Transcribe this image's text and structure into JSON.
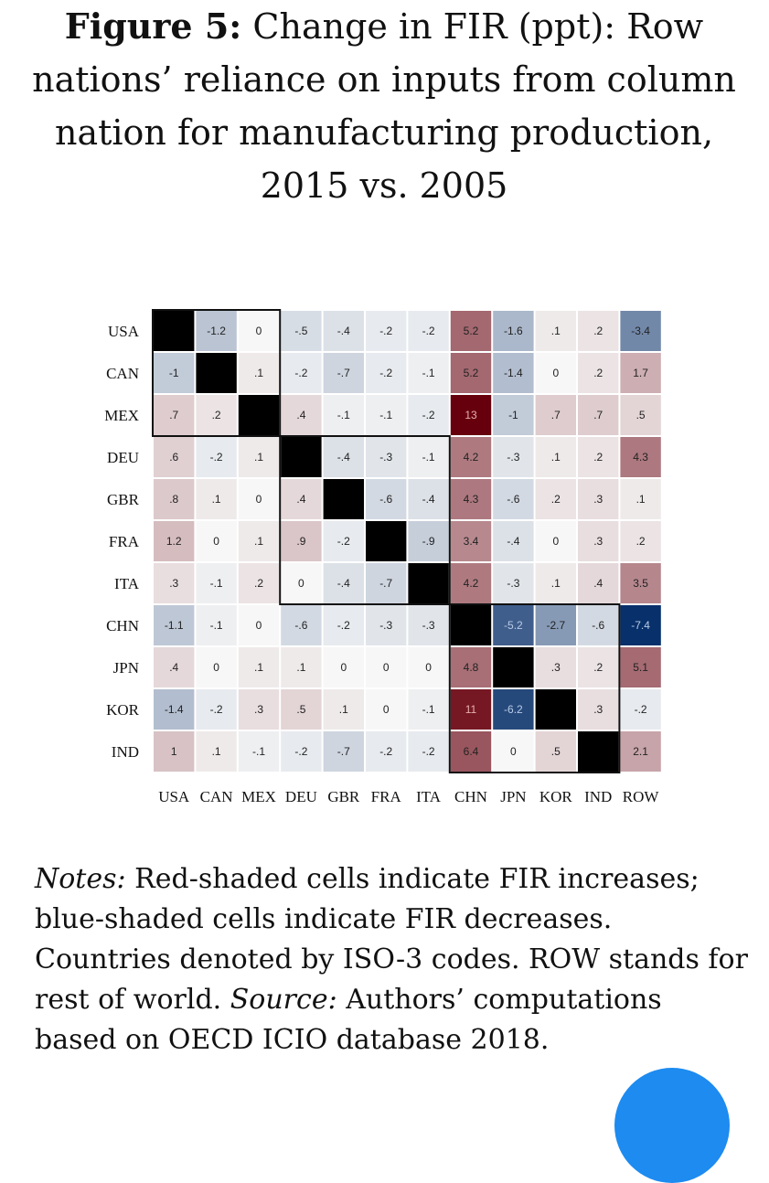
{
  "figure": {
    "label": "Figure 5:",
    "title": "Change in FIR (ppt): Row nations’ reliance on inputs from column nation for manufacturing production, 2015 vs. 2005"
  },
  "notes": {
    "label": "Notes:",
    "text": "Red-shaded cells indicate FIR increases; blue-shaded cells indicate FIR decreases. Countries denoted by ISO-3 codes. ROW stands for rest of world.",
    "source_label": "Source:",
    "source_text": "Authors’ computations based on OECD ICIO database 2018."
  },
  "chart_data": {
    "type": "heatmap",
    "title": "Change in FIR (ppt)",
    "row_labels": [
      "USA",
      "CAN",
      "MEX",
      "DEU",
      "GBR",
      "FRA",
      "ITA",
      "CHN",
      "JPN",
      "KOR",
      "IND"
    ],
    "col_labels": [
      "USA",
      "CAN",
      "MEX",
      "DEU",
      "GBR",
      "FRA",
      "ITA",
      "CHN",
      "JPN",
      "KOR",
      "IND",
      "ROW"
    ],
    "display": [
      [
        null,
        "-1.2",
        "0",
        "-.5",
        "-.4",
        "-.2",
        "-.2",
        "5.2",
        "-1.6",
        ".1",
        ".2",
        "-3.4"
      ],
      [
        "-1",
        null,
        ".1",
        "-.2",
        "-.7",
        "-.2",
        "-.1",
        "5.2",
        "-1.4",
        "0",
        ".2",
        "1.7"
      ],
      [
        ".7",
        ".2",
        null,
        ".4",
        "-.1",
        "-.1",
        "-.2",
        "13",
        "-1",
        ".7",
        ".7",
        ".5"
      ],
      [
        ".6",
        "-.2",
        ".1",
        null,
        "-.4",
        "-.3",
        "-.1",
        "4.2",
        "-.3",
        ".1",
        ".2",
        "4.3"
      ],
      [
        ".8",
        ".1",
        "0",
        ".4",
        null,
        "-.6",
        "-.4",
        "4.3",
        "-.6",
        ".2",
        ".3",
        ".1"
      ],
      [
        "1.2",
        "0",
        ".1",
        ".9",
        "-.2",
        null,
        "-.9",
        "3.4",
        "-.4",
        "0",
        ".3",
        ".2"
      ],
      [
        ".3",
        "-.1",
        ".2",
        "0",
        "-.4",
        "-.7",
        null,
        "4.2",
        "-.3",
        ".1",
        ".4",
        "3.5"
      ],
      [
        "-1.1",
        "-.1",
        "0",
        "-.6",
        "-.2",
        "-.3",
        "-.3",
        null,
        "-5.2",
        "-2.7",
        "-.6",
        "-7.4"
      ],
      [
        ".4",
        "0",
        ".1",
        ".1",
        "0",
        "0",
        "0",
        "4.8",
        null,
        ".3",
        ".2",
        "5.1"
      ],
      [
        "-1.4",
        "-.2",
        ".3",
        ".5",
        ".1",
        "0",
        "-.1",
        "11",
        "-6.2",
        null,
        ".3",
        "-.2"
      ],
      [
        "1",
        ".1",
        "-.1",
        "-.2",
        "-.7",
        "-.2",
        "-.2",
        "6.4",
        "0",
        ".5",
        null,
        "2.1"
      ]
    ],
    "values": [
      [
        null,
        -1.2,
        0,
        -0.5,
        -0.4,
        -0.2,
        -0.2,
        5.2,
        -1.6,
        0.1,
        0.2,
        -3.4
      ],
      [
        -1,
        null,
        0.1,
        -0.2,
        -0.7,
        -0.2,
        -0.1,
        5.2,
        -1.4,
        0,
        0.2,
        1.7
      ],
      [
        0.7,
        0.2,
        null,
        0.4,
        -0.1,
        -0.1,
        -0.2,
        13,
        -1,
        0.7,
        0.7,
        0.5
      ],
      [
        0.6,
        -0.2,
        0.1,
        null,
        -0.4,
        -0.3,
        -0.1,
        4.2,
        -0.3,
        0.1,
        0.2,
        4.3
      ],
      [
        0.8,
        0.1,
        0,
        0.4,
        null,
        -0.6,
        -0.4,
        4.3,
        -0.6,
        0.2,
        0.3,
        0.1
      ],
      [
        1.2,
        0,
        0.1,
        0.9,
        -0.2,
        null,
        -0.9,
        3.4,
        -0.4,
        0,
        0.3,
        0.2
      ],
      [
        0.3,
        -0.1,
        0.2,
        0,
        -0.4,
        -0.7,
        null,
        4.2,
        -0.3,
        0.1,
        0.4,
        3.5
      ],
      [
        -1.1,
        -0.1,
        0,
        -0.6,
        -0.2,
        -0.3,
        -0.3,
        null,
        -5.2,
        -2.7,
        -0.6,
        -7.4
      ],
      [
        0.4,
        0,
        0.1,
        0.1,
        0,
        0,
        0,
        4.8,
        null,
        0.3,
        0.2,
        5.1
      ],
      [
        -1.4,
        -0.2,
        0.3,
        0.5,
        0.1,
        0,
        -0.1,
        11,
        -6.2,
        null,
        0.3,
        -0.2
      ],
      [
        1,
        0.1,
        -0.1,
        -0.2,
        -0.7,
        -0.2,
        -0.2,
        6.4,
        0,
        0.5,
        null,
        2.1
      ]
    ],
    "diagonal_fill": "black",
    "color_scale": {
      "negative": "#08306b",
      "zero": "#f7f7f7",
      "positive": "#67000d"
    },
    "group_boxes": [
      {
        "rows": [
          "USA",
          "MEX"
        ],
        "cols": [
          "USA",
          "MEX"
        ]
      },
      {
        "rows": [
          "DEU",
          "ITA"
        ],
        "cols": [
          "DEU",
          "ITA"
        ]
      },
      {
        "rows": [
          "CHN",
          "IND"
        ],
        "cols": [
          "CHN",
          "IND"
        ]
      }
    ]
  }
}
